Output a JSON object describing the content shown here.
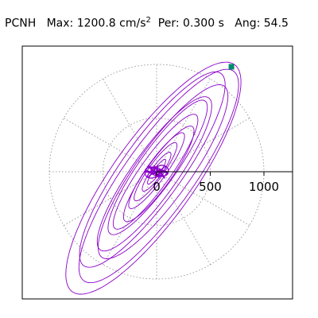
{
  "header": {
    "station": "PCNH",
    "max_label": "Max:",
    "max_value": "1200.8",
    "max_unit": "cm/s",
    "max_unit_exp": "2",
    "per_label": "Per:",
    "per_value": "0.300",
    "per_unit": "s",
    "ang_label": "Ang:",
    "ang_value": "54.5"
  },
  "chart_data": {
    "type": "scatter",
    "title": "",
    "xlabel": "",
    "ylabel": "",
    "x_tick_labels": [
      "0",
      "500",
      "1000"
    ],
    "x_ticks": [
      0,
      500,
      1000
    ],
    "xlim": [
      -1000,
      1280
    ],
    "ylim": [
      -1200,
      1200
    ],
    "grid": "dotted polar",
    "legend": "none",
    "max_point": {
      "x": 697,
      "y": 978
    },
    "colors": {
      "orbit": "#8b00c8",
      "marker": "#008a6e",
      "grid": "#888888",
      "axis": "#000000"
    },
    "loops": [
      {
        "a": 1300,
        "b": 380,
        "cx": -30,
        "cy": -60
      },
      {
        "a": 1200,
        "b": 320,
        "cx": 20,
        "cy": -40
      },
      {
        "a": 1100,
        "b": 280,
        "cx": -40,
        "cy": 20
      },
      {
        "a": 980,
        "b": 250,
        "cx": 60,
        "cy": 0
      },
      {
        "a": 870,
        "b": 210,
        "cx": -20,
        "cy": -20
      },
      {
        "a": 760,
        "b": 170,
        "cx": 10,
        "cy": 40
      },
      {
        "a": 650,
        "b": 140,
        "cx": -10,
        "cy": 0
      },
      {
        "a": 540,
        "b": 120,
        "cx": 20,
        "cy": -20
      },
      {
        "a": 430,
        "b": 90,
        "cx": 0,
        "cy": 10
      },
      {
        "a": 330,
        "b": 70,
        "cx": -10,
        "cy": 0
      },
      {
        "a": 220,
        "b": 50,
        "cx": 0,
        "cy": 0
      },
      {
        "a": 140,
        "b": 30,
        "cx": 0,
        "cy": 0
      }
    ]
  }
}
